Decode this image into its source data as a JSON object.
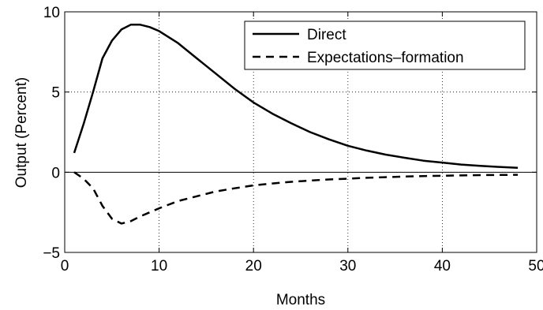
{
  "chart_data": {
    "type": "line",
    "title": "",
    "xlabel": "Months",
    "ylabel": "Output (Percent)",
    "xlim": [
      0,
      50
    ],
    "ylim": [
      -5,
      10
    ],
    "xticks": [
      0,
      10,
      20,
      30,
      40,
      50
    ],
    "yticks": [
      -5,
      0,
      5,
      10
    ],
    "grid": true,
    "legend_position": "top-right",
    "series": [
      {
        "name": "Direct",
        "style": "solid",
        "color": "#000000",
        "x": [
          1,
          2,
          3,
          4,
          5,
          6,
          7,
          8,
          9,
          10,
          12,
          14,
          16,
          18,
          20,
          22,
          24,
          26,
          28,
          30,
          32,
          34,
          36,
          38,
          40,
          42,
          44,
          46,
          48
        ],
        "y": [
          1.2,
          3.0,
          5.0,
          7.1,
          8.2,
          8.9,
          9.2,
          9.2,
          9.05,
          8.8,
          8.05,
          7.1,
          6.15,
          5.2,
          4.35,
          3.65,
          3.05,
          2.5,
          2.05,
          1.65,
          1.35,
          1.1,
          0.9,
          0.72,
          0.6,
          0.48,
          0.4,
          0.33,
          0.27
        ]
      },
      {
        "name": "Expectations–formation",
        "style": "dashed",
        "color": "#000000",
        "x": [
          1,
          2,
          3,
          4,
          5,
          6,
          7,
          8,
          10,
          12,
          14,
          16,
          18,
          20,
          22,
          24,
          26,
          28,
          30,
          32,
          34,
          36,
          38,
          40,
          42,
          44,
          46,
          48
        ],
        "y": [
          0.0,
          -0.4,
          -1.0,
          -2.1,
          -2.9,
          -3.2,
          -3.05,
          -2.75,
          -2.25,
          -1.8,
          -1.5,
          -1.2,
          -1.0,
          -0.82,
          -0.7,
          -0.6,
          -0.52,
          -0.45,
          -0.4,
          -0.35,
          -0.31,
          -0.27,
          -0.24,
          -0.22,
          -0.2,
          -0.18,
          -0.17,
          -0.16
        ]
      }
    ]
  }
}
